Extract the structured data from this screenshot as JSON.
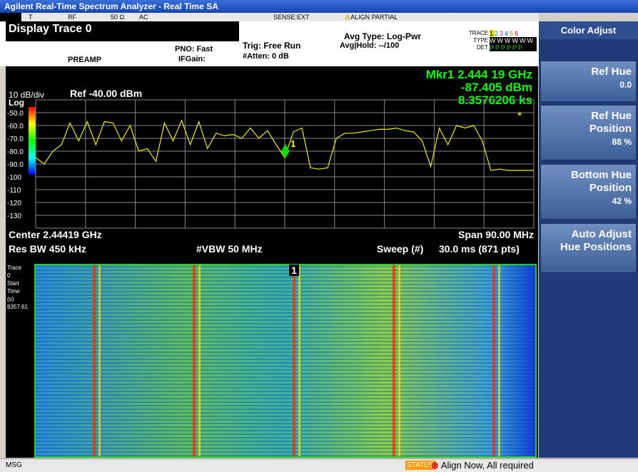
{
  "title_bar": "Agilent Real-Time Spectrum Analyzer - Real Time SA",
  "status_row": {
    "t": "T",
    "rf": "RF",
    "impedance": "50 Ω",
    "coupling": "AC",
    "sense": "SENSE:EXT",
    "align": "ALIGN PARTIAL"
  },
  "header": {
    "title": "Display Trace 0",
    "preamp": "PREAMP",
    "pno": "PNO: Fast",
    "ifgain": "IFGain:",
    "trig": "Trig: Free Run",
    "atten": "#Atten: 0 dB",
    "avg_type": "Avg Type: Log-Pwr",
    "avg_hold": "Avg|Hold: --/100",
    "trace_label": "TRACE",
    "trace_numbers": [
      "1",
      "2",
      "3",
      "4",
      "5",
      "6"
    ],
    "type_label": "TYPE",
    "type_value": "WWWWWW",
    "det_label": "DET",
    "det_value": "PPPPPP"
  },
  "softkeys": {
    "title": "Color Adjust",
    "keys": [
      [
        "Ref Hue",
        "0.0"
      ],
      [
        "Ref Hue",
        "Position",
        "88 %"
      ],
      [
        "Bottom Hue",
        "Position",
        "42 %"
      ],
      [
        "Auto Adjust",
        "Hue Positions"
      ]
    ]
  },
  "spectrum": {
    "scale": "10 dB/div",
    "log": "Log",
    "ref": "Ref -40.00 dBm",
    "marker": [
      "Mkr1 2.444 19 GHz",
      "-87.405 dBm",
      "8.3576206 ks"
    ],
    "marker_id": "1",
    "y_labels": [
      "-50.0",
      "-60.0",
      "-70.0",
      "-80.0",
      "-90.0",
      "-100",
      "-110",
      "-120",
      "-130"
    ],
    "ylim": [
      -140,
      -40
    ],
    "trace": [
      -85,
      -90,
      -80,
      -75,
      -58,
      -72,
      -57,
      -75,
      -57,
      -58,
      -72,
      -60,
      -80,
      -78,
      -88,
      -58,
      -72,
      -56,
      -75,
      -57,
      -78,
      -66,
      -68,
      -67,
      -70,
      -62,
      -70,
      -64,
      -75,
      -85,
      -65,
      -62,
      -93,
      -94,
      -93,
      -70,
      -66,
      -66,
      -65,
      -64,
      -63,
      -63,
      -62,
      -64,
      -65,
      -72,
      -92,
      -62,
      -75,
      -60,
      -62,
      -60,
      -72,
      -95,
      -94,
      -95,
      -95,
      -95,
      -95
    ],
    "center": "Center 2.44419 GHz",
    "span": "Span 90.00 MHz",
    "rbw": "Res BW 450 kHz",
    "vbw": "#VBW 50 MHz",
    "sweep": "Sweep (#)",
    "sweep_time": "30.0 ms (871 pts)"
  },
  "waterfall": {
    "labels": [
      "Trace",
      "0",
      "Start",
      "Time",
      "(s)",
      "8357.61"
    ],
    "marker_id": "1"
  },
  "status_bar": {
    "msg": "MSG",
    "status": "STATUS",
    "message": "Align Now, All required"
  }
}
